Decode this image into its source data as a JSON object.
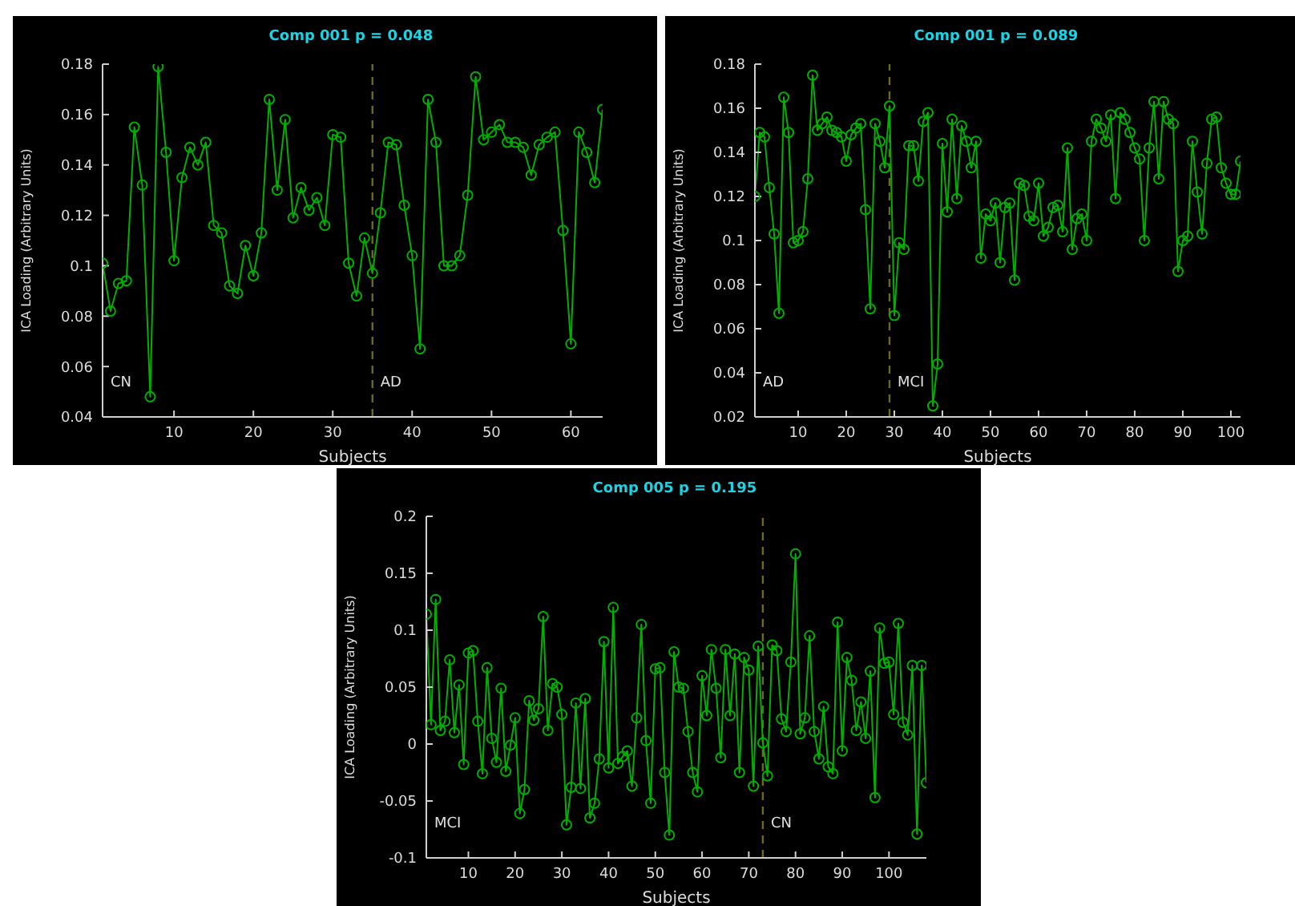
{
  "chart_data": [
    {
      "type": "line",
      "title": "Comp 001 p = 0.048",
      "xlabel": "Subjects",
      "ylabel": "ICA Loading (Arbitrary Units)",
      "marker": "circle",
      "line_style": "solid",
      "grid": false,
      "legend": false,
      "xlim": [
        1,
        64
      ],
      "xticks": [
        10,
        20,
        30,
        40,
        50,
        60
      ],
      "ylim": [
        0.04,
        0.18
      ],
      "yticks": [
        0.04,
        0.06,
        0.08,
        0.1,
        0.12,
        0.14,
        0.16,
        0.18
      ],
      "x": [
        1,
        2,
        3,
        4,
        5,
        6,
        7,
        8,
        9,
        10,
        11,
        12,
        13,
        14,
        15,
        16,
        17,
        18,
        19,
        20,
        21,
        22,
        23,
        24,
        25,
        26,
        27,
        28,
        29,
        30,
        31,
        32,
        33,
        34,
        35,
        36,
        37,
        38,
        39,
        40,
        41,
        42,
        43,
        44,
        45,
        46,
        47,
        48,
        49,
        50,
        51,
        52,
        53,
        54,
        55,
        56,
        57,
        58,
        59,
        60,
        61,
        62,
        63,
        64
      ],
      "series": [
        {
          "color": "#00b000",
          "values": [
            0.101,
            0.082,
            0.093,
            0.094,
            0.155,
            0.132,
            0.048,
            0.179,
            0.145,
            0.102,
            0.135,
            0.147,
            0.14,
            0.149,
            0.116,
            0.113,
            0.092,
            0.089,
            0.108,
            0.096,
            0.113,
            0.166,
            0.13,
            0.158,
            0.119,
            0.131,
            0.122,
            0.127,
            0.116,
            0.152,
            0.151,
            0.101,
            0.088,
            0.111,
            0.097,
            0.121,
            0.149,
            0.148,
            0.124,
            0.104,
            0.067,
            0.166,
            0.149,
            0.1,
            0.1,
            0.104,
            0.128,
            0.175,
            0.15,
            0.153,
            0.156,
            0.149,
            0.149,
            0.147,
            0.136,
            0.148,
            0.151,
            0.153,
            0.114,
            0.069,
            0.153,
            0.145,
            0.133,
            0.162
          ]
        }
      ],
      "ref_lines": [
        {
          "axis": "x",
          "value": 35,
          "color": "#6b6b1e",
          "line_style": "dashed"
        }
      ],
      "annotations": [
        "CN",
        "AD"
      ]
    },
    {
      "type": "line",
      "title": "Comp 001 p = 0.089",
      "xlabel": "Subjects",
      "ylabel": "ICA Loading (Arbitrary Units)",
      "marker": "circle",
      "line_style": "solid",
      "grid": false,
      "legend": false,
      "xlim": [
        1,
        102
      ],
      "xticks": [
        10,
        20,
        30,
        40,
        50,
        60,
        70,
        80,
        90,
        100
      ],
      "ylim": [
        0.02,
        0.18
      ],
      "yticks": [
        0.02,
        0.04,
        0.06,
        0.08,
        0.1,
        0.12,
        0.14,
        0.16,
        0.18
      ],
      "x": [
        1,
        2,
        3,
        4,
        5,
        6,
        7,
        8,
        9,
        10,
        11,
        12,
        13,
        14,
        15,
        16,
        17,
        18,
        19,
        20,
        21,
        22,
        23,
        24,
        25,
        26,
        27,
        28,
        29,
        30,
        31,
        32,
        33,
        34,
        35,
        36,
        37,
        38,
        39,
        40,
        41,
        42,
        43,
        44,
        45,
        46,
        47,
        48,
        49,
        50,
        51,
        52,
        53,
        54,
        55,
        56,
        57,
        58,
        59,
        60,
        61,
        62,
        63,
        64,
        65,
        66,
        67,
        68,
        69,
        70,
        71,
        72,
        73,
        74,
        75,
        76,
        77,
        78,
        79,
        80,
        81,
        82,
        83,
        84,
        85,
        86,
        87,
        88,
        89,
        90,
        91,
        92,
        93,
        94,
        95,
        96,
        97,
        98,
        99,
        100,
        101,
        102
      ],
      "series": [
        {
          "color": "#00b000",
          "values": [
            0.12,
            0.149,
            0.147,
            0.124,
            0.103,
            0.067,
            0.165,
            0.149,
            0.099,
            0.1,
            0.104,
            0.128,
            0.175,
            0.15,
            0.153,
            0.156,
            0.15,
            0.149,
            0.147,
            0.136,
            0.148,
            0.151,
            0.153,
            0.114,
            0.069,
            0.153,
            0.145,
            0.133,
            0.161,
            0.066,
            0.099,
            0.096,
            0.143,
            0.143,
            0.127,
            0.154,
            0.158,
            0.025,
            0.044,
            0.144,
            0.113,
            0.155,
            0.119,
            0.152,
            0.145,
            0.133,
            0.145,
            0.092,
            0.112,
            0.109,
            0.117,
            0.09,
            0.115,
            0.117,
            0.082,
            0.126,
            0.125,
            0.111,
            0.109,
            0.126,
            0.102,
            0.106,
            0.115,
            0.116,
            0.104,
            0.142,
            0.096,
            0.11,
            0.112,
            0.1,
            0.145,
            0.155,
            0.151,
            0.145,
            0.157,
            0.119,
            0.158,
            0.155,
            0.149,
            0.142,
            0.137,
            0.1,
            0.142,
            0.163,
            0.128,
            0.163,
            0.155,
            0.153,
            0.086,
            0.1,
            0.102,
            0.145,
            0.122,
            0.103,
            0.135,
            0.155,
            0.156,
            0.133,
            0.126,
            0.121,
            0.121,
            0.136
          ]
        }
      ],
      "ref_lines": [
        {
          "axis": "x",
          "value": 29,
          "color": "#6b6b1e",
          "line_style": "dashed"
        }
      ],
      "annotations": [
        "AD",
        "MCI"
      ]
    },
    {
      "type": "line",
      "title": "Comp 005 p = 0.195",
      "xlabel": "Subjects",
      "ylabel": "ICA Loading (Arbitrary Units)",
      "marker": "circle",
      "line_style": "solid",
      "grid": false,
      "legend": false,
      "xlim": [
        1,
        108
      ],
      "xticks": [
        10,
        20,
        30,
        40,
        50,
        60,
        70,
        80,
        90,
        100
      ],
      "ylim": [
        -0.1,
        0.2
      ],
      "yticks": [
        -0.1,
        -0.05,
        0,
        0.05,
        0.1,
        0.15,
        0.2
      ],
      "x": [
        1,
        2,
        3,
        4,
        5,
        6,
        7,
        8,
        9,
        10,
        11,
        12,
        13,
        14,
        15,
        16,
        17,
        18,
        19,
        20,
        21,
        22,
        23,
        24,
        25,
        26,
        27,
        28,
        29,
        30,
        31,
        32,
        33,
        34,
        35,
        36,
        37,
        38,
        39,
        40,
        41,
        42,
        43,
        44,
        45,
        46,
        47,
        48,
        49,
        50,
        51,
        52,
        53,
        54,
        55,
        56,
        57,
        58,
        59,
        60,
        61,
        62,
        63,
        64,
        65,
        66,
        67,
        68,
        69,
        70,
        71,
        72,
        73,
        74,
        75,
        76,
        77,
        78,
        79,
        80,
        81,
        82,
        83,
        84,
        85,
        86,
        87,
        88,
        89,
        90,
        91,
        92,
        93,
        94,
        95,
        96,
        97,
        98,
        99,
        100,
        101,
        102,
        103,
        104,
        105,
        106,
        107,
        108
      ],
      "series": [
        {
          "color": "#00b000",
          "values": [
            0.114,
            0.017,
            0.127,
            0.012,
            0.02,
            0.074,
            0.01,
            0.052,
            -0.018,
            0.08,
            0.082,
            0.02,
            -0.026,
            0.067,
            0.005,
            -0.016,
            0.049,
            -0.024,
            -0.001,
            0.023,
            -0.061,
            -0.04,
            0.038,
            0.021,
            0.031,
            0.112,
            0.012,
            0.053,
            0.05,
            0.026,
            -0.071,
            -0.038,
            0.036,
            -0.039,
            0.04,
            -0.065,
            -0.052,
            -0.013,
            0.09,
            -0.021,
            0.12,
            -0.017,
            -0.011,
            -0.006,
            -0.037,
            0.023,
            0.105,
            0.003,
            -0.052,
            0.066,
            0.067,
            -0.025,
            -0.08,
            0.081,
            0.05,
            0.049,
            0.011,
            -0.025,
            -0.042,
            0.06,
            0.025,
            0.083,
            0.049,
            -0.012,
            0.083,
            0.025,
            0.079,
            -0.025,
            0.076,
            0.065,
            -0.037,
            0.086,
            0.001,
            -0.028,
            0.087,
            0.082,
            0.022,
            0.011,
            0.072,
            0.167,
            0.009,
            0.023,
            0.095,
            0.011,
            -0.013,
            0.033,
            -0.02,
            -0.026,
            0.107,
            -0.006,
            0.076,
            0.056,
            0.012,
            0.037,
            0.005,
            0.064,
            -0.047,
            0.102,
            0.071,
            0.072,
            0.026,
            0.106,
            0.019,
            0.008,
            0.069,
            -0.079,
            0.069,
            -0.034
          ]
        }
      ],
      "ref_lines": [
        {
          "axis": "x",
          "value": 73,
          "color": "#6b6b1e",
          "line_style": "dashed"
        }
      ],
      "annotations": [
        "MCI",
        "CN"
      ]
    }
  ]
}
